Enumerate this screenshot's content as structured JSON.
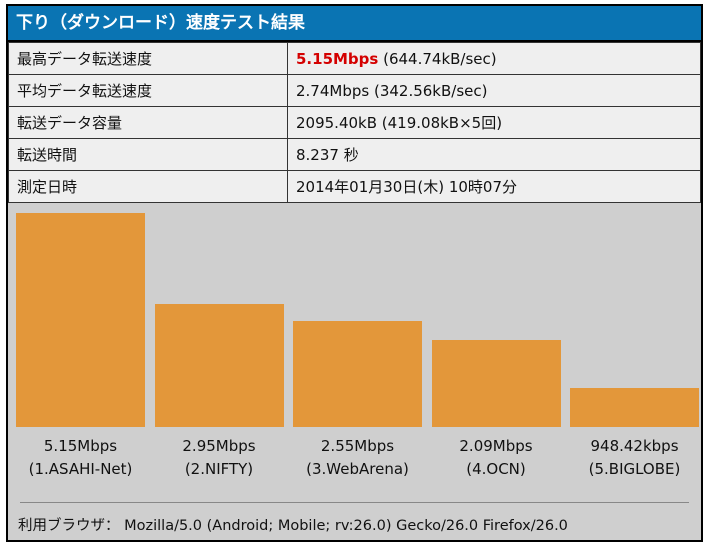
{
  "title": "下り（ダウンロード）速度テスト結果",
  "rows": [
    {
      "label": "最高データ転送速度",
      "value_highlight": "5.15Mbps",
      "value": " (644.74kB/sec)"
    },
    {
      "label": "平均データ転送速度",
      "value_highlight": "",
      "value": "2.74Mbps (342.56kB/sec)"
    },
    {
      "label": "転送データ容量",
      "value_highlight": "",
      "value": "2095.40kB (419.08kB×5回)"
    },
    {
      "label": "転送時間",
      "value_highlight": "",
      "value": "8.237 秒"
    },
    {
      "label": "測定日時",
      "value_highlight": "",
      "value": "2014年01月30日(木) 10時07分"
    }
  ],
  "chart_data": {
    "type": "bar",
    "categories": [
      "(1.ASAHI-Net)",
      "(2.NIFTY)",
      "(3.WebArena)",
      "(4.OCN)",
      "(5.BIGLOBE)"
    ],
    "value_labels": [
      "5.15Mbps",
      "2.95Mbps",
      "2.55Mbps",
      "2.09Mbps",
      "948.42kbps"
    ],
    "values_mbps": [
      5.15,
      2.95,
      2.55,
      2.09,
      0.948
    ],
    "bar_color": "#e3973a"
  },
  "footer": {
    "label": "利用ブラウザ：",
    "value": " Mozilla/5.0 (Android; Mobile; rv:26.0) Gecko/26.0 Firefox/26.0"
  },
  "colors": {
    "title_bg": "#0a74b3",
    "highlight": "#d40000",
    "panel_bg": "#cfcfcf"
  }
}
